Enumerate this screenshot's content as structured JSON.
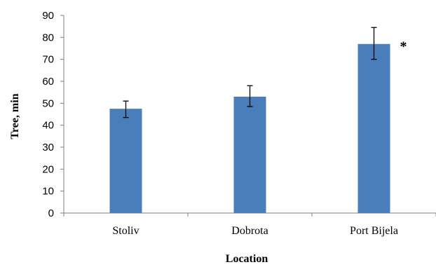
{
  "chart_data": {
    "type": "bar",
    "title": "",
    "xlabel": "Location",
    "ylabel": "Tree, min",
    "ylim": [
      0,
      90
    ],
    "yticks": [
      0,
      10,
      20,
      30,
      40,
      50,
      60,
      70,
      80,
      90
    ],
    "categories": [
      "Stoliv",
      "Dobrota",
      "Port Bijela"
    ],
    "values": [
      47.5,
      53,
      77
    ],
    "error_low": [
      43.5,
      48.5,
      70
    ],
    "error_high": [
      51,
      58,
      84.5
    ],
    "annotations": [
      {
        "category": "Port Bijela",
        "text": "*"
      }
    ],
    "grid": false,
    "legend": "none",
    "bar_color": "#4a7ebb"
  }
}
